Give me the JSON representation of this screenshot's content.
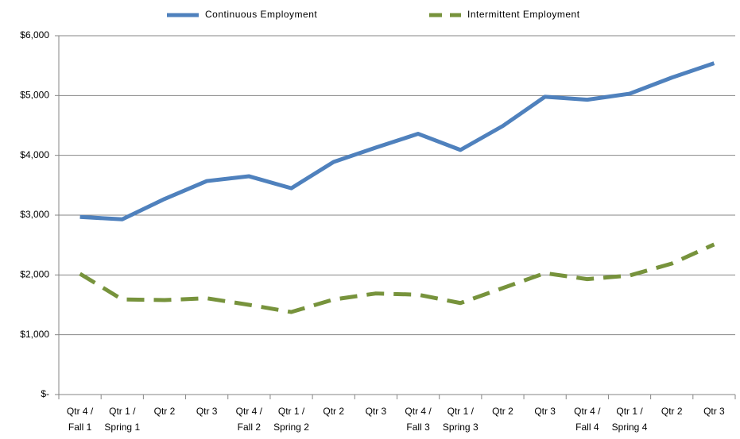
{
  "chart_data": {
    "type": "line",
    "categories": [
      [
        "Qtr 4 /",
        "Fall 1"
      ],
      [
        "Qtr 1 /",
        "Spring 1"
      ],
      [
        "Qtr 2"
      ],
      [
        "Qtr 3"
      ],
      [
        "Qtr 4 /",
        "Fall 2"
      ],
      [
        "Qtr 1 /",
        "Spring 2"
      ],
      [
        "Qtr 2"
      ],
      [
        "Qtr 3"
      ],
      [
        "Qtr 4 /",
        "Fall 3"
      ],
      [
        "Qtr 1 /",
        "Spring 3"
      ],
      [
        "Qtr 2"
      ],
      [
        "Qtr 3"
      ],
      [
        "Qtr 4 /",
        "Fall 4"
      ],
      [
        "Qtr 1 /",
        "Spring 4"
      ],
      [
        "Qtr 2"
      ],
      [
        "Qtr 3"
      ]
    ],
    "series": [
      {
        "name": "Continuous Employment",
        "color": "#4f81bd",
        "dashed": false,
        "values": [
          2970,
          2930,
          3270,
          3570,
          3650,
          3450,
          3890,
          4130,
          4360,
          4090,
          4490,
          4980,
          4930,
          5030,
          5300,
          5540
        ]
      },
      {
        "name": "Intermittent Employment",
        "color": "#77933c",
        "dashed": true,
        "values": [
          2020,
          1590,
          1580,
          1610,
          1500,
          1380,
          1590,
          1690,
          1670,
          1530,
          1780,
          2030,
          1930,
          1990,
          2190,
          2510
        ]
      }
    ],
    "ylim": [
      0,
      6000
    ],
    "yticks": [
      {
        "value": 0,
        "label": "$-"
      },
      {
        "value": 1000,
        "label": "$1,000"
      },
      {
        "value": 2000,
        "label": "$2,000"
      },
      {
        "value": 3000,
        "label": "$3,000"
      },
      {
        "value": 4000,
        "label": "$4,000"
      },
      {
        "value": 5000,
        "label": "$5,000"
      },
      {
        "value": 6000,
        "label": "$6,000"
      }
    ],
    "grid": true,
    "legend": "top"
  }
}
